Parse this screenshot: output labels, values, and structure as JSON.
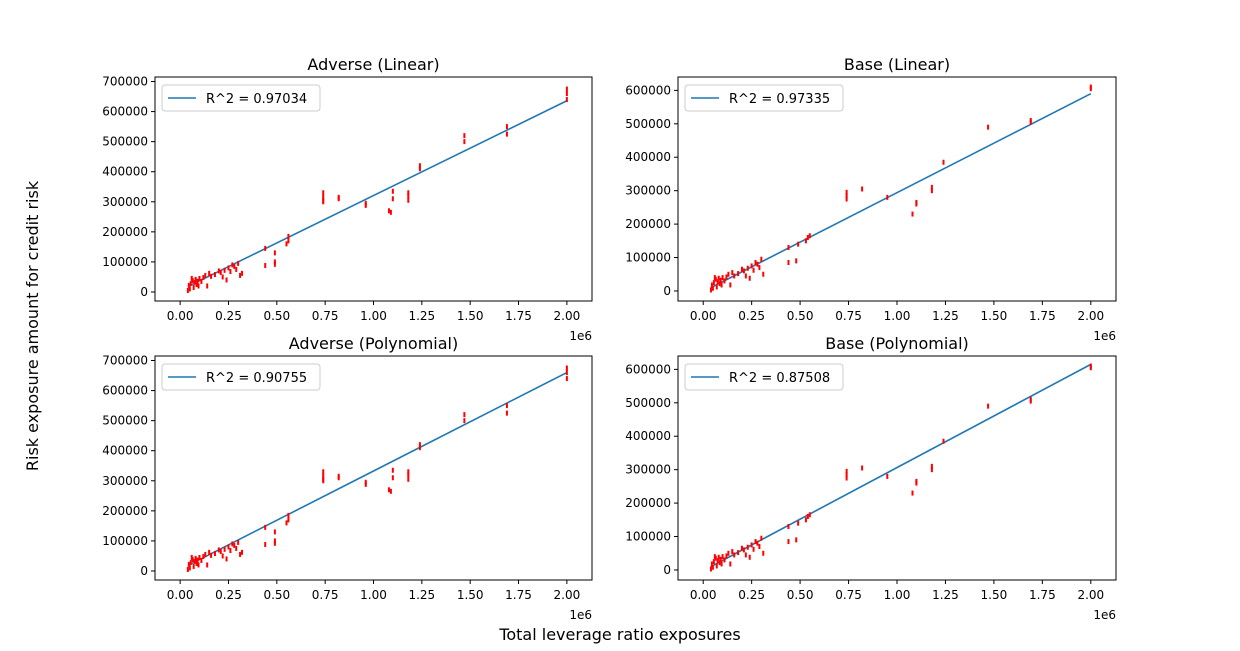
{
  "figure": {
    "ylabel": "Risk exposure amount for credit risk",
    "xlabel": "Total leverage ratio exposures"
  },
  "colors": {
    "line": "#1f77b4",
    "points": "#ff0000",
    "axis": "#000000",
    "legend_border": "#cccccc"
  },
  "chart_data": [
    {
      "type": "scatter",
      "title": "Adverse (Linear)",
      "legend": [
        "R^2 = 0.97034"
      ],
      "xlim": [
        -130000,
        2130000
      ],
      "ylim": [
        -30000,
        715000
      ],
      "xticks": [
        0,
        250000,
        500000,
        750000,
        1000000,
        1250000,
        1500000,
        1750000,
        2000000
      ],
      "xtick_labels": [
        "0.00",
        "0.25",
        "0.50",
        "0.75",
        "1.00",
        "1.25",
        "1.50",
        "1.75",
        "2.00"
      ],
      "x_offset_label": "1e6",
      "yticks": [
        0,
        100000,
        200000,
        300000,
        400000,
        500000,
        600000,
        700000
      ],
      "ytick_labels": [
        "0",
        "100000",
        "200000",
        "300000",
        "400000",
        "500000",
        "600000",
        "700000"
      ],
      "fit_line": {
        "x": [
          40000,
          2000000
        ],
        "y": [
          18000,
          636000
        ]
      },
      "points": {
        "x": [
          40000,
          45000,
          50000,
          55000,
          60000,
          65000,
          70000,
          75000,
          80000,
          85000,
          90000,
          95000,
          100000,
          110000,
          120000,
          130000,
          140000,
          150000,
          160000,
          180000,
          200000,
          210000,
          220000,
          230000,
          240000,
          250000,
          260000,
          270000,
          280000,
          290000,
          300000,
          310000,
          320000,
          440000,
          440000,
          490000,
          490000,
          490000,
          550000,
          560000,
          560000,
          740000,
          740000,
          740000,
          740000,
          820000,
          820000,
          960000,
          960000,
          1080000,
          1090000,
          1100000,
          1100000,
          1180000,
          1180000,
          1180000,
          1240000,
          1240000,
          1470000,
          1470000,
          1690000,
          1690000,
          2000000,
          2000000,
          2000000
        ],
        "y": [
          5000,
          22000,
          10000,
          28000,
          45000,
          38000,
          15000,
          32000,
          42000,
          25000,
          36000,
          20000,
          45000,
          35000,
          48000,
          55000,
          20000,
          62000,
          52000,
          58000,
          70000,
          65000,
          50000,
          72000,
          40000,
          80000,
          68000,
          90000,
          85000,
          75000,
          95000,
          55000,
          62000,
          145000,
          88000,
          130000,
          100000,
          92000,
          160000,
          170000,
          185000,
          330000,
          315000,
          305000,
          300000,
          315000,
          310000,
          295000,
          288000,
          270000,
          265000,
          335000,
          310000,
          305000,
          320000,
          330000,
          420000,
          410000,
          520000,
          500000,
          550000,
          525000,
          675000,
          660000,
          640000
        ]
      }
    },
    {
      "type": "scatter",
      "title": "Base (Linear)",
      "legend": [
        "R^2 = 0.97335"
      ],
      "xlim": [
        -130000,
        2130000
      ],
      "ylim": [
        -30000,
        640000
      ],
      "xticks": [
        0,
        250000,
        500000,
        750000,
        1000000,
        1250000,
        1500000,
        1750000,
        2000000
      ],
      "xtick_labels": [
        "0.00",
        "0.25",
        "0.50",
        "0.75",
        "1.00",
        "1.25",
        "1.50",
        "1.75",
        "2.00"
      ],
      "x_offset_label": "1e6",
      "yticks": [
        0,
        100000,
        200000,
        300000,
        400000,
        500000,
        600000
      ],
      "ytick_labels": [
        "0",
        "100000",
        "200000",
        "300000",
        "400000",
        "500000",
        "600000"
      ],
      "fit_line": {
        "x": [
          40000,
          2000000
        ],
        "y": [
          10000,
          590000
        ]
      },
      "points": {
        "x": [
          40000,
          45000,
          50000,
          55000,
          60000,
          65000,
          70000,
          75000,
          80000,
          85000,
          90000,
          95000,
          100000,
          110000,
          120000,
          130000,
          140000,
          150000,
          160000,
          180000,
          200000,
          210000,
          220000,
          230000,
          240000,
          250000,
          260000,
          270000,
          280000,
          290000,
          300000,
          310000,
          440000,
          440000,
          480000,
          490000,
          530000,
          540000,
          550000,
          740000,
          740000,
          740000,
          820000,
          950000,
          1080000,
          1100000,
          1100000,
          1180000,
          1180000,
          1240000,
          1470000,
          1690000,
          1690000,
          2000000,
          2000000
        ],
        "y": [
          3000,
          18000,
          8000,
          25000,
          40000,
          35000,
          12000,
          28000,
          38000,
          22000,
          32000,
          18000,
          40000,
          30000,
          42000,
          50000,
          18000,
          55000,
          45000,
          52000,
          65000,
          60000,
          45000,
          68000,
          38000,
          75000,
          62000,
          85000,
          80000,
          70000,
          95000,
          50000,
          130000,
          85000,
          90000,
          140000,
          150000,
          160000,
          165000,
          295000,
          285000,
          275000,
          305000,
          280000,
          230000,
          265000,
          260000,
          310000,
          300000,
          385000,
          490000,
          510000,
          505000,
          610000,
          605000
        ]
      }
    },
    {
      "type": "scatter",
      "title": "Adverse (Polynomial)",
      "legend": [
        "R^2 = 0.90755"
      ],
      "xlim": [
        -130000,
        2130000
      ],
      "ylim": [
        -30000,
        715000
      ],
      "xticks": [
        0,
        250000,
        500000,
        750000,
        1000000,
        1250000,
        1500000,
        1750000,
        2000000
      ],
      "xtick_labels": [
        "0.00",
        "0.25",
        "0.50",
        "0.75",
        "1.00",
        "1.25",
        "1.50",
        "1.75",
        "2.00"
      ],
      "x_offset_label": "1e6",
      "yticks": [
        0,
        100000,
        200000,
        300000,
        400000,
        500000,
        600000,
        700000
      ],
      "ytick_labels": [
        "0",
        "100000",
        "200000",
        "300000",
        "400000",
        "500000",
        "600000",
        "700000"
      ],
      "fit_line": {
        "x": [
          40000,
          2000000
        ],
        "y": [
          18000,
          660000
        ]
      },
      "points": {
        "x": [
          40000,
          45000,
          50000,
          55000,
          60000,
          65000,
          70000,
          75000,
          80000,
          85000,
          90000,
          95000,
          100000,
          110000,
          120000,
          130000,
          140000,
          150000,
          160000,
          180000,
          200000,
          210000,
          220000,
          230000,
          240000,
          250000,
          260000,
          270000,
          280000,
          290000,
          300000,
          310000,
          320000,
          440000,
          440000,
          490000,
          490000,
          490000,
          550000,
          560000,
          560000,
          740000,
          740000,
          740000,
          740000,
          820000,
          820000,
          960000,
          960000,
          1080000,
          1090000,
          1100000,
          1100000,
          1180000,
          1180000,
          1180000,
          1240000,
          1240000,
          1470000,
          1470000,
          1690000,
          1690000,
          2000000,
          2000000,
          2000000
        ],
        "y": [
          5000,
          22000,
          10000,
          28000,
          45000,
          38000,
          15000,
          32000,
          42000,
          25000,
          36000,
          20000,
          45000,
          35000,
          48000,
          55000,
          20000,
          62000,
          52000,
          58000,
          70000,
          65000,
          50000,
          72000,
          40000,
          80000,
          68000,
          90000,
          85000,
          75000,
          95000,
          55000,
          62000,
          145000,
          88000,
          130000,
          100000,
          92000,
          160000,
          170000,
          185000,
          330000,
          315000,
          305000,
          300000,
          315000,
          310000,
          295000,
          288000,
          270000,
          265000,
          335000,
          310000,
          305000,
          320000,
          330000,
          420000,
          410000,
          520000,
          500000,
          550000,
          525000,
          675000,
          660000,
          640000
        ]
      }
    },
    {
      "type": "scatter",
      "title": "Base (Polynomial)",
      "legend": [
        "R^2 = 0.87508"
      ],
      "xlim": [
        -130000,
        2130000
      ],
      "ylim": [
        -30000,
        640000
      ],
      "xticks": [
        0,
        250000,
        500000,
        750000,
        1000000,
        1250000,
        1500000,
        1750000,
        2000000
      ],
      "xtick_labels": [
        "0.00",
        "0.25",
        "0.50",
        "0.75",
        "1.00",
        "1.25",
        "1.50",
        "1.75",
        "2.00"
      ],
      "x_offset_label": "1e6",
      "yticks": [
        0,
        100000,
        200000,
        300000,
        400000,
        500000,
        600000
      ],
      "ytick_labels": [
        "0",
        "100000",
        "200000",
        "300000",
        "400000",
        "500000",
        "600000"
      ],
      "fit_line": {
        "x": [
          40000,
          2000000
        ],
        "y": [
          10000,
          615000
        ]
      },
      "points": {
        "x": [
          40000,
          45000,
          50000,
          55000,
          60000,
          65000,
          70000,
          75000,
          80000,
          85000,
          90000,
          95000,
          100000,
          110000,
          120000,
          130000,
          140000,
          150000,
          160000,
          180000,
          200000,
          210000,
          220000,
          230000,
          240000,
          250000,
          260000,
          270000,
          280000,
          290000,
          300000,
          310000,
          440000,
          440000,
          480000,
          490000,
          530000,
          540000,
          550000,
          740000,
          740000,
          740000,
          820000,
          950000,
          1080000,
          1100000,
          1100000,
          1180000,
          1180000,
          1240000,
          1470000,
          1690000,
          1690000,
          2000000,
          2000000
        ],
        "y": [
          3000,
          18000,
          8000,
          25000,
          40000,
          35000,
          12000,
          28000,
          38000,
          22000,
          32000,
          18000,
          40000,
          30000,
          42000,
          50000,
          18000,
          55000,
          45000,
          52000,
          65000,
          60000,
          45000,
          68000,
          38000,
          75000,
          62000,
          85000,
          80000,
          70000,
          95000,
          50000,
          130000,
          85000,
          90000,
          140000,
          150000,
          160000,
          165000,
          295000,
          285000,
          275000,
          305000,
          280000,
          230000,
          265000,
          260000,
          310000,
          300000,
          385000,
          490000,
          510000,
          505000,
          610000,
          605000
        ]
      }
    }
  ]
}
